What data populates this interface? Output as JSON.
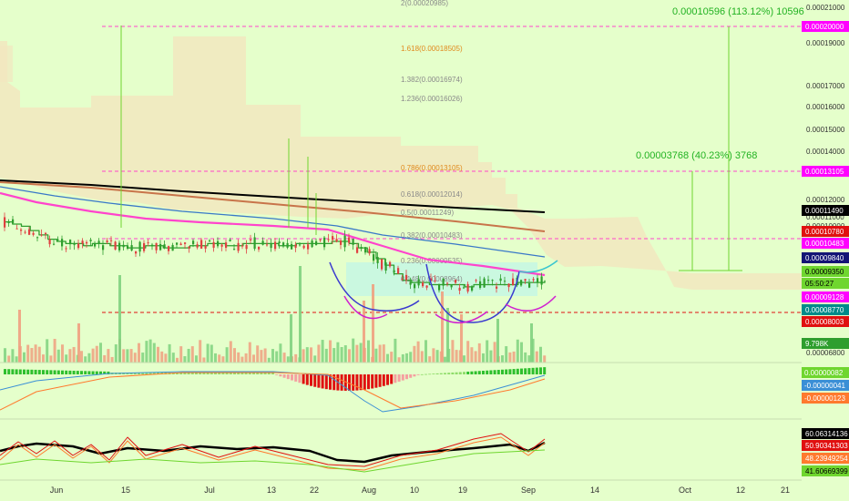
{
  "chart_data": {
    "type": "line",
    "title": "",
    "xlabel": "",
    "ylabel": "",
    "x_ticks": [
      "Jun",
      "15",
      "Jul",
      "13",
      "22",
      "Aug",
      "10",
      "19",
      "Sep",
      "14",
      "Oct",
      "12",
      "21"
    ],
    "y_ticks": [
      "0.00021000",
      "0.00019000",
      "0.00017000",
      "0.00016000",
      "0.00015000",
      "0.00014000",
      "0.00012000",
      "0.00011000",
      "0.00010000",
      "0.00006800"
    ],
    "ylim": [
      6.8e-05,
      0.00021
    ],
    "price_labels": [
      {
        "text": "0.00020000",
        "color": "#ff00ff"
      },
      {
        "text": "0.00013105",
        "color": "#ff00ff"
      },
      {
        "text": "0.00011490",
        "color": "#000000"
      },
      {
        "text": "0.00010780",
        "color": "#e01010"
      },
      {
        "text": "0.00010483",
        "color": "#ff00ff"
      },
      {
        "text": "0.00009840",
        "color": "#141475"
      },
      {
        "text": "0.00009350",
        "color": "#6fd62f"
      },
      {
        "text": "05:50:27",
        "color": "#6fd62f"
      },
      {
        "text": "0.00009128",
        "color": "#ff00ff"
      },
      {
        "text": "0.00008770",
        "color": "#008a8a"
      },
      {
        "text": "0.00008003",
        "color": "#e01010"
      },
      {
        "text": "9.798K",
        "color": "#2e9e2e"
      }
    ],
    "fib_levels": [
      {
        "label": "2(0.00020985)",
        "value": 0.00020985,
        "color": "#8a8a8a"
      },
      {
        "label": "1.618(0.00018505)",
        "value": 0.00018505,
        "color": "#e08a1e"
      },
      {
        "label": "1.382(0.00016974)",
        "value": 0.00016974,
        "color": "#8a8a8a"
      },
      {
        "label": "1.236(0.00016026)",
        "value": 0.00016026,
        "color": "#8a8a8a"
      },
      {
        "label": "0.786(0.00013105)",
        "value": 0.00013105,
        "color": "#e08a1e"
      },
      {
        "label": "0.618(0.00012014)",
        "value": 0.00012014,
        "color": "#8a8a8a"
      },
      {
        "label": "0.5(0.00011249)",
        "value": 0.00011249,
        "color": "#8a8a8a"
      },
      {
        "label": "0.382(0.00010483)",
        "value": 0.00010483,
        "color": "#8a8a8a"
      },
      {
        "label": "0.236(0.00009535)",
        "value": 9.535e-05,
        "color": "#8a8a8a"
      },
      {
        "label": "0.148(0.00008964)",
        "value": 8.964e-05,
        "color": "#8a8a8a"
      }
    ],
    "annotations": [
      {
        "text": "0.00010596 (113.12%) 10596",
        "color": "#22b222"
      },
      {
        "text": "0.00003768 (40.23%) 3768",
        "color": "#22b222"
      }
    ],
    "macd": {
      "labels": [
        {
          "text": "0.00000082",
          "color": "#6fd62f"
        },
        {
          "text": "-0.00000041",
          "color": "#3b8fd6"
        },
        {
          "text": "-0.00000123",
          "color": "#ff7a2e"
        }
      ]
    },
    "stoch": {
      "labels": [
        {
          "text": "60.06314136",
          "color": "#000000"
        },
        {
          "text": "50.90341303",
          "color": "#e01010"
        },
        {
          "text": "48.23949254",
          "color": "#ff7a2e"
        },
        {
          "text": "41.60669399",
          "color": "#6fd62f"
        }
      ]
    },
    "series": [
      {
        "name": "",
        "type": "price",
        "color": "#2e9e2e",
        "values": [
          0.000118,
          0.000117,
          0.000116,
          0.000114,
          0.000112,
          0.00011,
          0.000109,
          0.000108,
          0.000108,
          0.000107,
          0.000108,
          0.000108,
          0.000107,
          0.000107,
          0.000106,
          0.000106,
          0.000107,
          0.000107,
          0.000106,
          0.000106,
          0.000106,
          0.000107,
          0.000107,
          0.000108,
          0.000108,
          0.000107,
          0.000107,
          0.000108,
          0.000108,
          0.000108,
          0.000108,
          0.000107,
          0.000107,
          0.000108,
          0.000108,
          0.000108,
          0.000108,
          0.000109,
          0.000109,
          0.000108,
          0.000106,
          0.000104,
          0.000101,
          9.8e-05,
          9.4e-05,
          9.1e-05,
          9e-05,
          9e-05,
          8.9e-05,
          8.9e-05,
          8.9e-05,
          8.9e-05,
          8.8e-05,
          8.9e-05,
          8.9e-05,
          8.9e-05,
          8.9e-05,
          8.9e-05,
          9e-05,
          9e-05,
          9e-05,
          9.1e-05
        ]
      },
      {
        "name": "",
        "type": "ma",
        "color": "#000000",
        "values": [
          0.000123,
          0.000122,
          0.000121,
          0.000119,
          0.000117,
          0.000116,
          0.000115
        ]
      },
      {
        "name": "",
        "type": "ma",
        "color": "#c8744a",
        "values": [
          0.000122,
          0.00012,
          0.000118,
          0.000116,
          0.000114,
          0.000112,
          0.000109
        ]
      },
      {
        "name": "",
        "type": "ma",
        "color": "#3a78c8",
        "values": [
          0.000121,
          0.000117,
          0.000112,
          0.000108,
          0.000104,
          0.000101,
          9.9e-05
        ]
      },
      {
        "name": "",
        "type": "ma",
        "color": "#ff44cc",
        "values": [
          0.000114,
          0.000111,
          0.000109,
          0.000108,
          0.000103,
          9.6e-05,
          9.3e-05
        ]
      }
    ],
    "grid": false,
    "legend": "none"
  }
}
